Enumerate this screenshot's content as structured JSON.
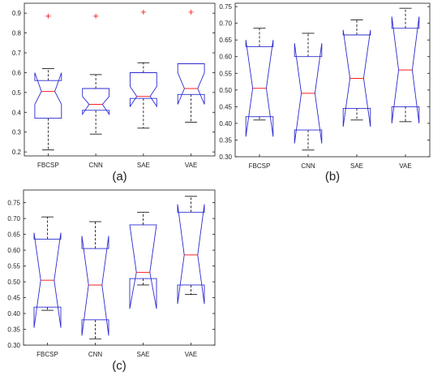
{
  "chart_data": [
    {
      "type": "box",
      "panel_label": "(a)",
      "categories": [
        "FBCSP",
        "CNN",
        "SAE",
        "VAE"
      ],
      "ylim": [
        0.18,
        0.95
      ],
      "yticks": [
        0.2,
        0.3,
        0.4,
        0.5,
        0.6,
        0.7,
        0.8,
        0.9
      ],
      "boxes": [
        {
          "whisker_low": 0.21,
          "q1": 0.37,
          "median": 0.505,
          "q3": 0.56,
          "whisker_high": 0.62,
          "notch_low": 0.44,
          "notch_high": 0.6,
          "outliers": [
            0.885
          ]
        },
        {
          "whisker_low": 0.29,
          "q1": 0.41,
          "median": 0.44,
          "q3": 0.52,
          "whisker_high": 0.59,
          "notch_low": 0.39,
          "notch_high": 0.48,
          "outliers": [
            0.885
          ]
        },
        {
          "whisker_low": 0.32,
          "q1": 0.47,
          "median": 0.48,
          "q3": 0.6,
          "whisker_high": 0.65,
          "notch_low": 0.43,
          "notch_high": 0.53,
          "outliers": [
            0.905
          ]
        },
        {
          "whisker_low": 0.35,
          "q1": 0.49,
          "median": 0.52,
          "q3": 0.645,
          "whisker_high": 0.645,
          "notch_low": 0.44,
          "notch_high": 0.6,
          "outliers": [
            0.905
          ]
        }
      ]
    },
    {
      "type": "box",
      "panel_label": "(b)",
      "categories": [
        "FBCSP",
        "CNN",
        "SAE",
        "VAE"
      ],
      "ylim": [
        0.3,
        0.76
      ],
      "yticks": [
        0.3,
        0.35,
        0.4,
        0.45,
        0.5,
        0.55,
        0.6,
        0.65,
        0.7,
        0.75
      ],
      "boxes": [
        {
          "whisker_low": 0.41,
          "q1": 0.42,
          "median": 0.505,
          "q3": 0.63,
          "whisker_high": 0.685,
          "notch_low": 0.36,
          "notch_high": 0.65,
          "outliers": []
        },
        {
          "whisker_low": 0.32,
          "q1": 0.38,
          "median": 0.49,
          "q3": 0.6,
          "whisker_high": 0.67,
          "notch_low": 0.34,
          "notch_high": 0.64,
          "outliers": []
        },
        {
          "whisker_low": 0.41,
          "q1": 0.445,
          "median": 0.535,
          "q3": 0.665,
          "whisker_high": 0.71,
          "notch_low": 0.39,
          "notch_high": 0.68,
          "outliers": []
        },
        {
          "whisker_low": 0.405,
          "q1": 0.45,
          "median": 0.56,
          "q3": 0.685,
          "whisker_high": 0.745,
          "notch_low": 0.4,
          "notch_high": 0.72,
          "outliers": []
        }
      ]
    },
    {
      "type": "box",
      "panel_label": "(c)",
      "categories": [
        "FBCSP",
        "CNN",
        "SAE",
        "VAE"
      ],
      "ylim": [
        0.3,
        0.79
      ],
      "yticks": [
        0.3,
        0.35,
        0.4,
        0.45,
        0.5,
        0.55,
        0.6,
        0.65,
        0.7,
        0.75
      ],
      "boxes": [
        {
          "whisker_low": 0.41,
          "q1": 0.42,
          "median": 0.505,
          "q3": 0.635,
          "whisker_high": 0.705,
          "notch_low": 0.355,
          "notch_high": 0.655,
          "outliers": []
        },
        {
          "whisker_low": 0.32,
          "q1": 0.38,
          "median": 0.49,
          "q3": 0.605,
          "whisker_high": 0.69,
          "notch_low": 0.33,
          "notch_high": 0.645,
          "outliers": []
        },
        {
          "whisker_low": 0.49,
          "q1": 0.51,
          "median": 0.53,
          "q3": 0.68,
          "whisker_high": 0.72,
          "notch_low": 0.415,
          "notch_high": 0.68,
          "outliers": []
        },
        {
          "whisker_low": 0.46,
          "q1": 0.49,
          "median": 0.585,
          "q3": 0.72,
          "whisker_high": 0.77,
          "notch_low": 0.43,
          "notch_high": 0.745,
          "outliers": []
        }
      ]
    }
  ],
  "colors": {
    "box": "#2b2bd0",
    "median": "#ff2020",
    "whisker": "#000000",
    "outlier": "#ff2020",
    "axis": "#1a1a1a",
    "text": "#222222"
  }
}
